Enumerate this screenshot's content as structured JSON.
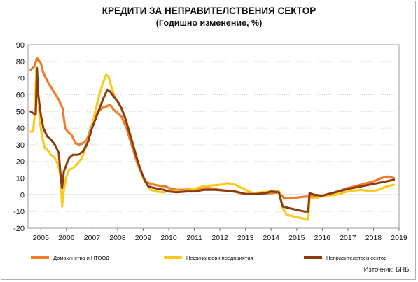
{
  "page": {
    "title": "КРЕДИТИ ЗА НЕПРАВИТЕЛСТВЕНИЯ СЕКТОР",
    "subtitle": "(Годишно изменение, %)",
    "source": "Източник: БНБ."
  },
  "chart_data": {
    "type": "line",
    "title": "КРЕДИТИ ЗА НЕПРАВИТЕЛСТВЕНИЯ СЕКТОР",
    "subtitle": "(Годишно изменение, %)",
    "xlabel": "",
    "ylabel": "",
    "ylim": [
      -20,
      90
    ],
    "yticks": [
      -20,
      -10,
      0,
      10,
      20,
      30,
      40,
      50,
      60,
      70,
      80,
      90
    ],
    "xlim": [
      2004.5,
      2019
    ],
    "xticks": [
      "2005",
      "2006",
      "2007",
      "2008",
      "2009",
      "2010",
      "2011",
      "2012",
      "2013",
      "2014",
      "2015",
      "2016",
      "2017",
      "2018",
      "2019"
    ],
    "grid": "horizontal",
    "legend_position": "bottom",
    "series": [
      {
        "name": "Домакинства и НТООД",
        "color": "#f07c2a",
        "points": [
          [
            2004.6,
            75
          ],
          [
            2004.75,
            77
          ],
          [
            2004.85,
            82
          ],
          [
            2005.0,
            79
          ],
          [
            2005.1,
            73
          ],
          [
            2005.3,
            67
          ],
          [
            2005.5,
            62
          ],
          [
            2005.7,
            57
          ],
          [
            2005.85,
            52
          ],
          [
            2005.95,
            40
          ],
          [
            2006.05,
            38
          ],
          [
            2006.2,
            36
          ],
          [
            2006.35,
            31
          ],
          [
            2006.5,
            30
          ],
          [
            2006.65,
            31
          ],
          [
            2006.8,
            33
          ],
          [
            2007.0,
            42
          ],
          [
            2007.2,
            49
          ],
          [
            2007.4,
            52
          ],
          [
            2007.55,
            53
          ],
          [
            2007.7,
            54
          ],
          [
            2007.85,
            51
          ],
          [
            2008.0,
            49
          ],
          [
            2008.15,
            47
          ],
          [
            2008.35,
            40
          ],
          [
            2008.55,
            30
          ],
          [
            2008.75,
            20
          ],
          [
            2008.95,
            12
          ],
          [
            2009.1,
            8
          ],
          [
            2009.3,
            6.5
          ],
          [
            2009.6,
            5.5
          ],
          [
            2009.9,
            5
          ],
          [
            2010.0,
            4
          ],
          [
            2010.3,
            3
          ],
          [
            2010.6,
            3
          ],
          [
            2011.0,
            3.5
          ],
          [
            2011.3,
            4
          ],
          [
            2011.6,
            4
          ],
          [
            2012.0,
            3
          ],
          [
            2012.5,
            2
          ],
          [
            2013.0,
            0.5
          ],
          [
            2013.5,
            1
          ],
          [
            2014.0,
            1
          ],
          [
            2014.3,
            1.5
          ],
          [
            2014.5,
            -2
          ],
          [
            2014.8,
            -2
          ],
          [
            2015.1,
            -1.5
          ],
          [
            2015.4,
            -1
          ],
          [
            2015.6,
            -1
          ],
          [
            2016.0,
            -0.5
          ],
          [
            2016.5,
            1.5
          ],
          [
            2017.0,
            4
          ],
          [
            2017.5,
            6
          ],
          [
            2018.0,
            8
          ],
          [
            2018.3,
            10
          ],
          [
            2018.6,
            11
          ],
          [
            2018.8,
            10
          ]
        ]
      },
      {
        "name": "Нефинансови предприятия",
        "color": "#f7cc1f",
        "points": [
          [
            2004.6,
            38
          ],
          [
            2004.7,
            38
          ],
          [
            2004.78,
            51
          ],
          [
            2004.82,
            75
          ],
          [
            2004.88,
            68
          ],
          [
            2004.95,
            45
          ],
          [
            2005.05,
            35
          ],
          [
            2005.15,
            28
          ],
          [
            2005.25,
            27
          ],
          [
            2005.4,
            24
          ],
          [
            2005.55,
            22
          ],
          [
            2005.7,
            17
          ],
          [
            2005.78,
            10
          ],
          [
            2005.83,
            -7
          ],
          [
            2005.9,
            3
          ],
          [
            2005.98,
            10
          ],
          [
            2006.1,
            15
          ],
          [
            2006.25,
            16
          ],
          [
            2006.4,
            18
          ],
          [
            2006.6,
            22
          ],
          [
            2006.8,
            30
          ],
          [
            2006.95,
            38
          ],
          [
            2007.1,
            48
          ],
          [
            2007.25,
            58
          ],
          [
            2007.4,
            66
          ],
          [
            2007.55,
            72
          ],
          [
            2007.65,
            71
          ],
          [
            2007.75,
            65
          ],
          [
            2007.9,
            58
          ],
          [
            2008.05,
            55
          ],
          [
            2008.2,
            50
          ],
          [
            2008.35,
            43
          ],
          [
            2008.5,
            36
          ],
          [
            2008.7,
            25
          ],
          [
            2008.85,
            17
          ],
          [
            2009.0,
            10
          ],
          [
            2009.15,
            6
          ],
          [
            2009.3,
            3
          ],
          [
            2009.5,
            2
          ],
          [
            2009.8,
            1.5
          ],
          [
            2010.0,
            2.5
          ],
          [
            2010.3,
            2
          ],
          [
            2010.6,
            2.5
          ],
          [
            2011.0,
            3.5
          ],
          [
            2011.3,
            5
          ],
          [
            2011.6,
            5.5
          ],
          [
            2012.0,
            6
          ],
          [
            2012.3,
            7
          ],
          [
            2012.6,
            6
          ],
          [
            2013.0,
            3
          ],
          [
            2013.3,
            1
          ],
          [
            2013.6,
            1.5
          ],
          [
            2014.0,
            2
          ],
          [
            2014.3,
            2.5
          ],
          [
            2014.45,
            -8
          ],
          [
            2014.6,
            -12
          ],
          [
            2014.9,
            -13
          ],
          [
            2015.2,
            -14
          ],
          [
            2015.45,
            -15
          ],
          [
            2015.5,
            -2
          ],
          [
            2015.7,
            -2
          ],
          [
            2016.0,
            -1
          ],
          [
            2016.5,
            0
          ],
          [
            2017.0,
            2
          ],
          [
            2017.5,
            3
          ],
          [
            2017.9,
            2
          ],
          [
            2018.2,
            3
          ],
          [
            2018.5,
            5
          ],
          [
            2018.8,
            6
          ]
        ]
      },
      {
        "name": "Неправителствен сектор",
        "color": "#8b3a12",
        "points": [
          [
            2004.6,
            50
          ],
          [
            2004.7,
            49
          ],
          [
            2004.8,
            48
          ],
          [
            2004.85,
            76
          ],
          [
            2004.9,
            60
          ],
          [
            2005.0,
            48
          ],
          [
            2005.1,
            40
          ],
          [
            2005.25,
            35
          ],
          [
            2005.4,
            33
          ],
          [
            2005.55,
            30
          ],
          [
            2005.7,
            25
          ],
          [
            2005.78,
            10
          ],
          [
            2005.83,
            4
          ],
          [
            2005.9,
            14
          ],
          [
            2006.0,
            18
          ],
          [
            2006.1,
            22
          ],
          [
            2006.25,
            24
          ],
          [
            2006.45,
            24
          ],
          [
            2006.65,
            26
          ],
          [
            2006.85,
            32
          ],
          [
            2007.0,
            40
          ],
          [
            2007.15,
            46
          ],
          [
            2007.3,
            52
          ],
          [
            2007.45,
            58
          ],
          [
            2007.6,
            63
          ],
          [
            2007.7,
            62
          ],
          [
            2007.85,
            59
          ],
          [
            2008.0,
            56
          ],
          [
            2008.15,
            52
          ],
          [
            2008.3,
            46
          ],
          [
            2008.45,
            38
          ],
          [
            2008.6,
            30
          ],
          [
            2008.75,
            22
          ],
          [
            2008.9,
            15
          ],
          [
            2009.05,
            9
          ],
          [
            2009.2,
            5
          ],
          [
            2009.45,
            4
          ],
          [
            2009.8,
            3
          ],
          [
            2010.0,
            2
          ],
          [
            2010.3,
            1.5
          ],
          [
            2010.7,
            2
          ],
          [
            2011.0,
            2
          ],
          [
            2011.4,
            3
          ],
          [
            2011.8,
            3
          ],
          [
            2012.2,
            2.5
          ],
          [
            2012.6,
            2
          ],
          [
            2013.0,
            0.5
          ],
          [
            2013.4,
            0.5
          ],
          [
            2013.8,
            1
          ],
          [
            2014.0,
            2
          ],
          [
            2014.3,
            1.5
          ],
          [
            2014.45,
            -7
          ],
          [
            2014.7,
            -8
          ],
          [
            2015.0,
            -9
          ],
          [
            2015.3,
            -10
          ],
          [
            2015.45,
            -10
          ],
          [
            2015.5,
            1
          ],
          [
            2015.7,
            0
          ],
          [
            2016.0,
            -0.5
          ],
          [
            2016.5,
            1.5
          ],
          [
            2017.0,
            3.5
          ],
          [
            2017.5,
            5
          ],
          [
            2018.0,
            6.5
          ],
          [
            2018.5,
            8
          ],
          [
            2018.8,
            9
          ]
        ]
      }
    ]
  }
}
